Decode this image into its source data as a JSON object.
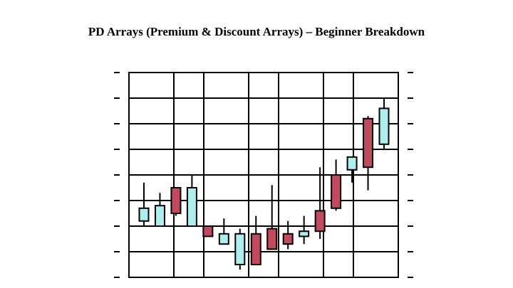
{
  "chart_data": {
    "type": "candlestick",
    "title": "PD Arrays (Premium & Discount Arrays) – Beginner Breakdown",
    "xlabel": "",
    "ylabel": "",
    "ylim": [
      0,
      8
    ],
    "grid": true,
    "legend": "none",
    "tick_labels": "none",
    "colors": {
      "up": "#aeeeee",
      "down": "#c24a5e",
      "edge": "#000000"
    },
    "candles": [
      {
        "open": 2.2,
        "high": 3.7,
        "low": 2.0,
        "close": 2.7
      },
      {
        "open": 2.0,
        "high": 3.3,
        "low": 2.0,
        "close": 2.8
      },
      {
        "open": 3.5,
        "high": 3.5,
        "low": 2.4,
        "close": 2.5
      },
      {
        "open": 2.0,
        "high": 4.0,
        "low": 2.0,
        "close": 3.5
      },
      {
        "open": 2.0,
        "high": 2.0,
        "low": 1.6,
        "close": 1.6
      },
      {
        "open": 1.3,
        "high": 2.3,
        "low": 1.3,
        "close": 1.7
      },
      {
        "open": 0.5,
        "high": 1.9,
        "low": 0.3,
        "close": 1.7
      },
      {
        "open": 1.7,
        "high": 2.4,
        "low": 0.5,
        "close": 0.5
      },
      {
        "open": 1.9,
        "high": 3.6,
        "low": 1.1,
        "close": 1.1
      },
      {
        "open": 1.7,
        "high": 2.2,
        "low": 1.1,
        "close": 1.3
      },
      {
        "open": 1.6,
        "high": 2.4,
        "low": 1.3,
        "close": 1.8
      },
      {
        "open": 2.6,
        "high": 4.3,
        "low": 1.5,
        "close": 1.8
      },
      {
        "open": 4.0,
        "high": 4.6,
        "low": 2.6,
        "close": 2.7
      },
      {
        "open": 4.2,
        "high": 4.7,
        "low": 3.7,
        "close": 4.7
      },
      {
        "open": 6.2,
        "high": 6.3,
        "low": 3.4,
        "close": 4.3
      },
      {
        "open": 5.2,
        "high": 7.0,
        "low": 5.0,
        "close": 6.6
      }
    ]
  }
}
